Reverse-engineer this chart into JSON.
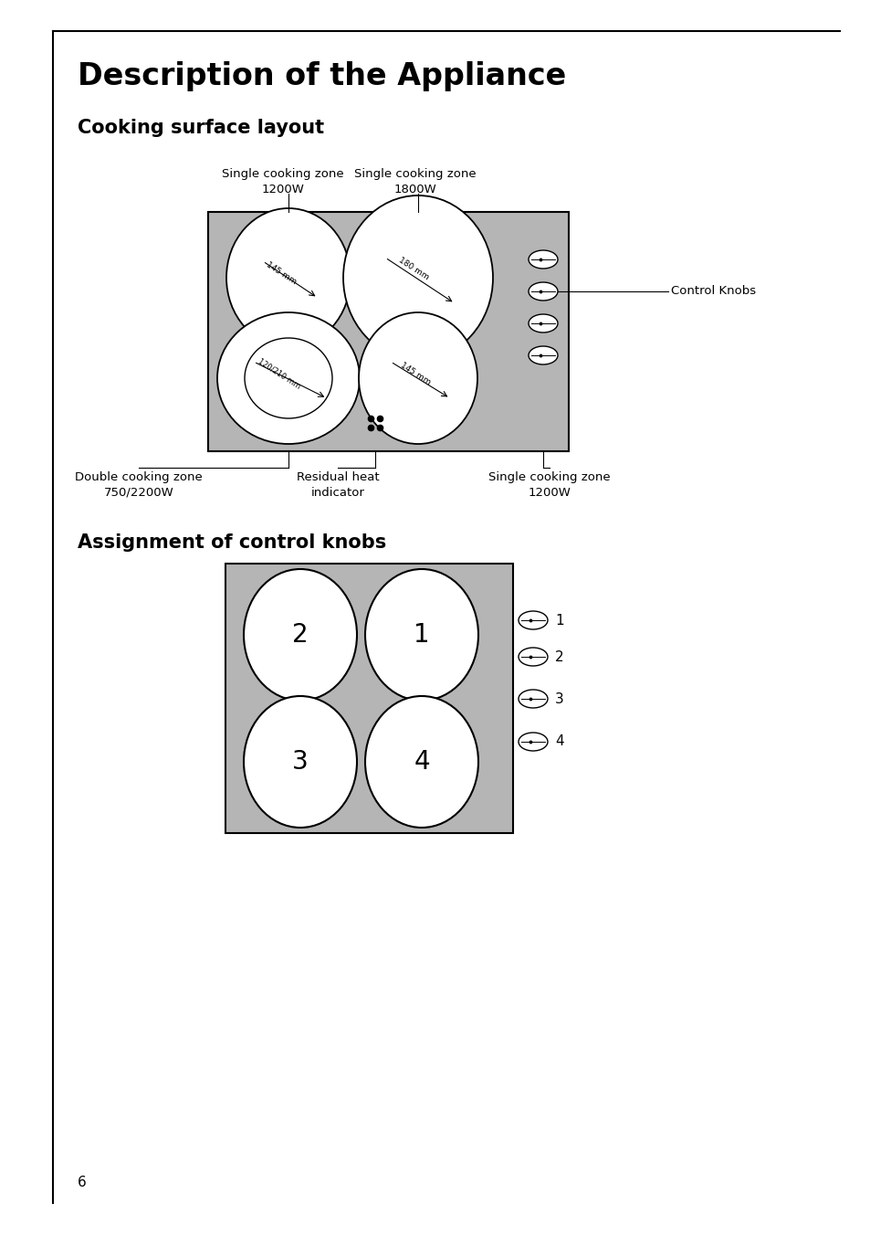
{
  "title": "Description of the Appliance",
  "section1": "Cooking surface layout",
  "section2": "Assignment of control knobs",
  "page_number": "6",
  "bg_color": "#ffffff",
  "gray_color": "#b5b5b5",
  "white_color": "#ffffff",
  "black_color": "#000000",
  "label_tl": "Single cooking zone\n1200W",
  "label_tr": "Single cooking zone\n1800W",
  "label_bl": "Double cooking zone\n750/2200W",
  "label_bc": "Residual heat\nindicator",
  "label_br": "Single cooking zone\n1200W",
  "label_knobs": "Control Knobs",
  "dim_tl": "145 mm",
  "dim_tr": "180 mm",
  "dim_bl": "120/210 mm",
  "dim_br": "145 mm"
}
